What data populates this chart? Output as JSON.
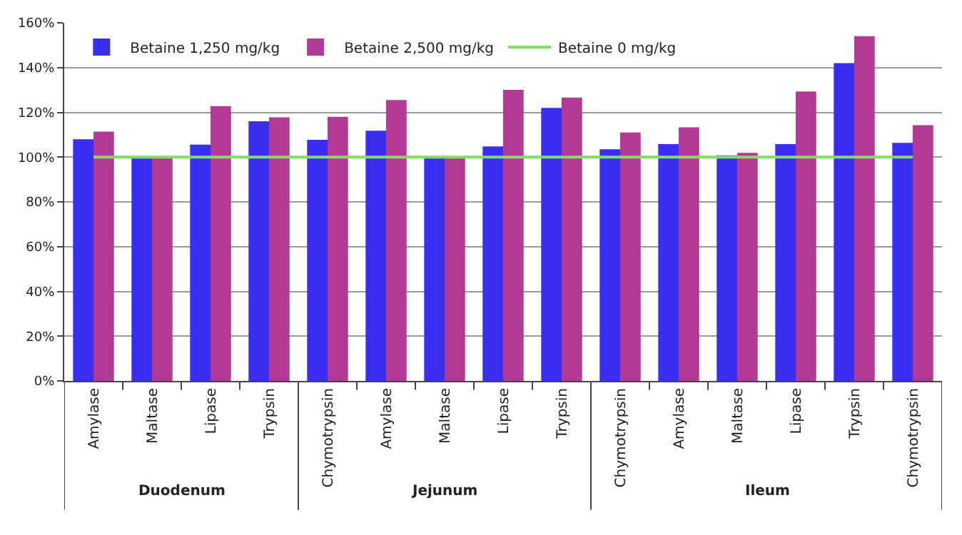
{
  "chart_data": {
    "type": "bar",
    "categories": [
      "Amylase",
      "Maltase",
      "Lipase",
      "Trypsin",
      "Chymotrypsin",
      "Amylase",
      "Maltase",
      "Lipase",
      "Trypsin",
      "Chymotrypsin",
      "Amylase",
      "Maltase",
      "Lipase",
      "Trypsin",
      "Chymotrypsin"
    ],
    "series": [
      {
        "name": "Betaine 1,250 mg/kg",
        "color": "#3a2ff0",
        "values": [
          108,
          100,
          105.6,
          116,
          107.7,
          111.8,
          100,
          104.8,
          122,
          103.5,
          105.8,
          100.8,
          105.8,
          142,
          106.4
        ]
      },
      {
        "name": "Betaine 2,500 mg/kg",
        "color": "#b23a96",
        "values": [
          111.4,
          100,
          122.8,
          117.8,
          118,
          125.5,
          100,
          130,
          126.6,
          111,
          113.3,
          101.9,
          129.3,
          154,
          114.3
        ]
      },
      {
        "name": "Betaine 0 mg/kg",
        "type": "line",
        "color": "#7fe05a",
        "marker": "none",
        "values": [
          100,
          100,
          100,
          100,
          100,
          100,
          100,
          100,
          100,
          100,
          100,
          100,
          100,
          100,
          100
        ]
      }
    ],
    "annotations": [
      "Duodenum",
      "Jejunum",
      "Ileum"
    ],
    "ylim": [
      0,
      160
    ],
    "yticks": [
      {
        "value": 0,
        "label": "0%"
      },
      {
        "value": 20,
        "label": "20%"
      },
      {
        "value": 40,
        "label": "40%"
      },
      {
        "value": 60,
        "label": "60%"
      },
      {
        "value": 80,
        "label": "80%"
      },
      {
        "value": 100,
        "label": "100%"
      },
      {
        "value": 120,
        "label": "120%"
      },
      {
        "value": 140,
        "label": "140%"
      },
      {
        "value": 160,
        "label": "160%"
      }
    ],
    "grid": "y",
    "legend": "top left"
  }
}
